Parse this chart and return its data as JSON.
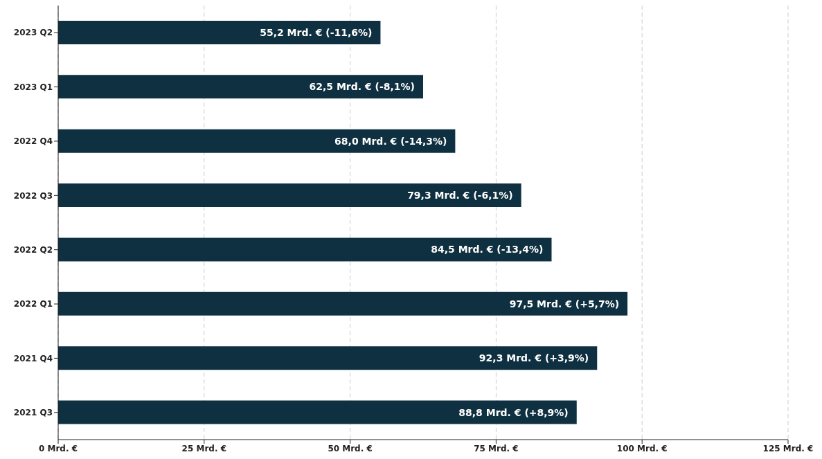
{
  "chart_data": {
    "type": "bar",
    "orientation": "horizontal",
    "categories": [
      "2023 Q2",
      "2023 Q1",
      "2022 Q4",
      "2022 Q3",
      "2022 Q2",
      "2022 Q1",
      "2021 Q4",
      "2021 Q3"
    ],
    "values": [
      55.2,
      62.5,
      68.0,
      79.3,
      84.5,
      97.5,
      92.3,
      88.8
    ],
    "value_labels": [
      "55,2 Mrd. € (-11,6%)",
      "62,5 Mrd. € (-8,1%)",
      "68,0 Mrd. € (-14,3%)",
      "79,3 Mrd. € (-6,1%)",
      "84,5 Mrd. € (-13,4%)",
      "97,5 Mrd. € (+5,7%)",
      "92,3 Mrd. € (+3,9%)",
      "88,8 Mrd. € (+8,9%)"
    ],
    "color": "#0f3040",
    "xlim": [
      0,
      125
    ],
    "xticks": [
      {
        "value": 0,
        "label": "0 Mrd. €"
      },
      {
        "value": 25,
        "label": "25 Mrd. €"
      },
      {
        "value": 50,
        "label": "50 Mrd. €"
      },
      {
        "value": 75,
        "label": "75 Mrd. €"
      },
      {
        "value": 100,
        "label": "100 Mrd. €"
      },
      {
        "value": 125,
        "label": "125 Mrd. €"
      }
    ],
    "grid": "x"
  }
}
